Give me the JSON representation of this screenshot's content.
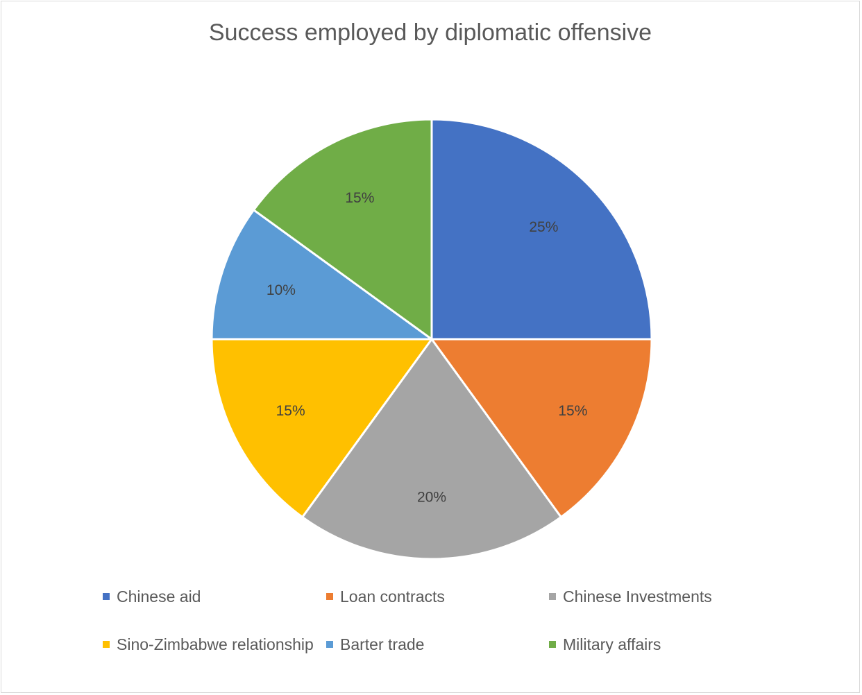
{
  "chart_data": {
    "type": "pie",
    "title": "Success employed by diplomatic offensive",
    "categories": [
      "Chinese aid",
      "Loan contracts",
      "Chinese Investments",
      "Sino-Zimbabwe relationship",
      "Barter trade",
      "Military affairs"
    ],
    "values": [
      25,
      15,
      20,
      15,
      10,
      15
    ],
    "labels": [
      "25%",
      "15%",
      "20%",
      "15%",
      "10%",
      "15%"
    ],
    "colors": [
      "#4472C4",
      "#ED7D31",
      "#A5A5A5",
      "#FFC000",
      "#5B9BD5",
      "#70AD47"
    ],
    "legend_position": "bottom"
  }
}
